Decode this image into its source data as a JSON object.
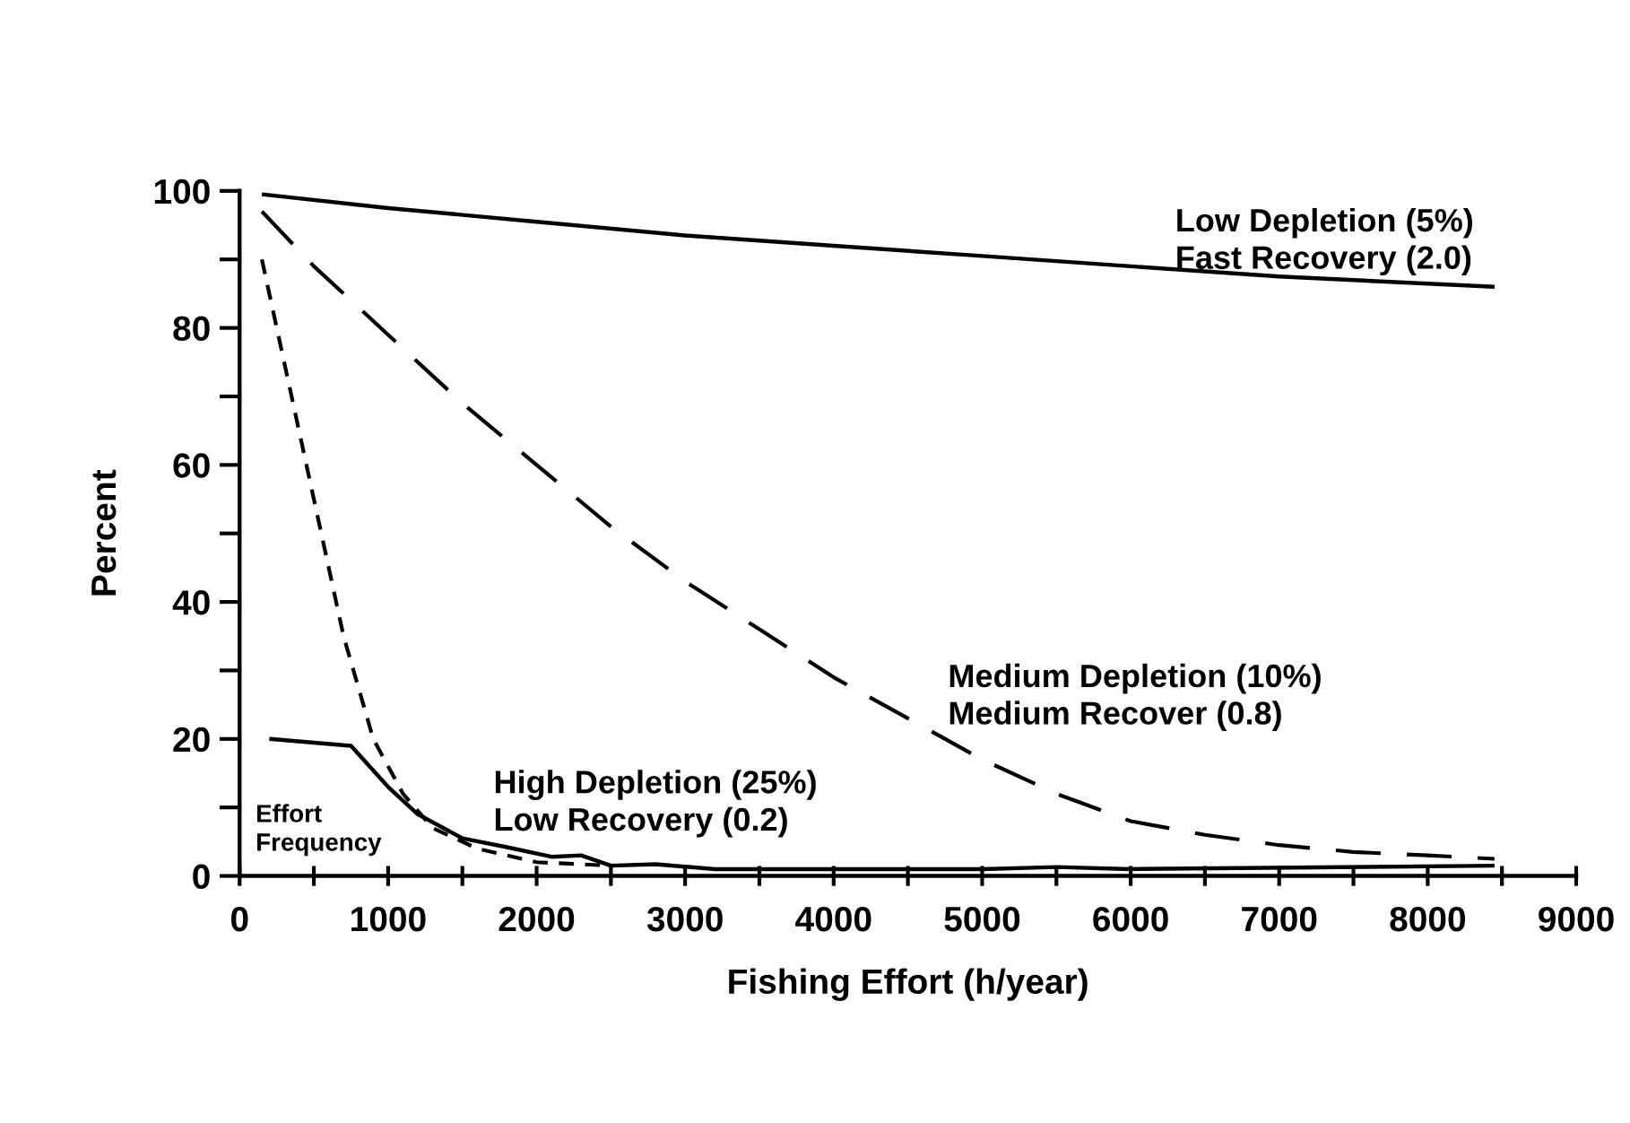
{
  "chart_data": {
    "type": "line",
    "xlabel": "Fishing Effort (h/year)",
    "ylabel": "Percent",
    "xlim": [
      0,
      9000
    ],
    "ylim": [
      0,
      100
    ],
    "xticks": [
      0,
      {
        "value": 500,
        "label": null
      },
      1000,
      {
        "value": 1500,
        "label": null
      },
      2000,
      {
        "value": 2500,
        "label": null
      },
      3000,
      {
        "value": 3500,
        "label": null
      },
      4000,
      {
        "value": 4500,
        "label": null
      },
      5000,
      {
        "value": 5500,
        "label": null
      },
      6000,
      {
        "value": 6500,
        "label": null
      },
      7000,
      {
        "value": 7500,
        "label": null
      },
      8000,
      {
        "value": 8500,
        "label": null
      },
      9000
    ],
    "yticks": [
      0,
      {
        "value": 10,
        "label": null
      },
      20,
      {
        "value": 30,
        "label": null
      },
      40,
      {
        "value": 50,
        "label": null
      },
      60,
      {
        "value": 70,
        "label": null
      },
      80,
      {
        "value": 90,
        "label": null
      },
      100
    ],
    "grid": false,
    "legend": false,
    "marker": "none",
    "series": [
      {
        "color": "#000000",
        "line_style": "solid",
        "x": [
          150,
          1000,
          2000,
          3000,
          4000,
          5000,
          6000,
          7000,
          8450
        ],
        "values": [
          99.5,
          97.5,
          95.5,
          93.5,
          92,
          90.5,
          89,
          87.5,
          86
        ]
      },
      {
        "color": "#000000",
        "line_style": "dashed",
        "x": [
          150,
          500,
          1000,
          1500,
          2000,
          2500,
          3000,
          3500,
          4000,
          4500,
          5000,
          5500,
          6000,
          6500,
          7000,
          7500,
          8000,
          8450
        ],
        "values": [
          97,
          89,
          79,
          69,
          60,
          51,
          43,
          36,
          29,
          23,
          17,
          12,
          8,
          6,
          4.5,
          3.5,
          3,
          2.5
        ]
      },
      {
        "color": "#000000",
        "line_style": "dotted",
        "x": [
          150,
          300,
          500,
          700,
          900,
          1100,
          1300,
          1600,
          2000,
          2500
        ],
        "values": [
          90,
          75,
          55,
          35,
          20,
          12,
          7,
          4,
          2,
          1.5
        ]
      },
      {
        "color": "#000000",
        "line_style": "solid",
        "x": [
          200,
          750,
          1000,
          1200,
          1500,
          1800,
          2100,
          2300,
          2500,
          2800,
          3200,
          4000,
          5000,
          5500,
          6000,
          8450
        ],
        "values": [
          20,
          19,
          13,
          9,
          5.5,
          4.2,
          2.8,
          3,
          1.5,
          1.7,
          1,
          1,
          1,
          1.3,
          1,
          1.5
        ]
      }
    ],
    "annotations": [
      "Low Depletion (5%)\nFast Recovery (2.0)",
      "Medium Depletion (10%)\nMedium Recover (0.8)",
      "High Depletion (25%)\nLow Recovery (0.2)",
      "Effort\nFrequency"
    ]
  }
}
